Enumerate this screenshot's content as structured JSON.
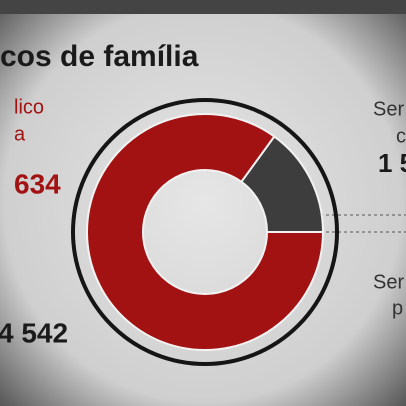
{
  "chart_data": {
    "type": "pie",
    "donut": true,
    "title": "cos de família",
    "annotations": [
      "lico",
      "a",
      "634",
      "Ser",
      "c",
      "1 5",
      "Ser",
      "p",
      "4 542"
    ],
    "values": [
      85,
      15
    ],
    "colors": [
      "#a31212",
      "#3d3d3d"
    ]
  }
}
